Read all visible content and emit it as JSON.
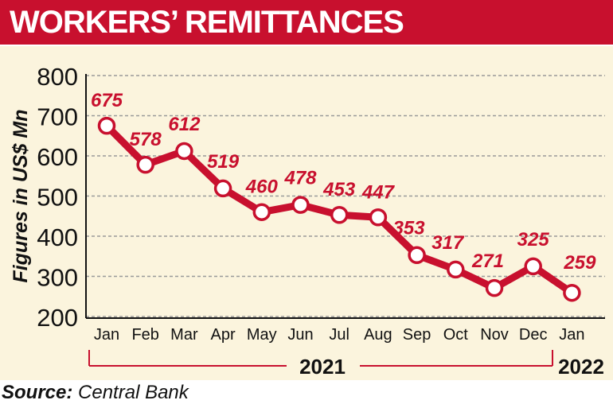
{
  "header": {
    "title": "WORKERS’ REMITTANCES"
  },
  "source": {
    "label": "Source:",
    "text": "Central Bank"
  },
  "colors": {
    "accent": "#c8102e",
    "panel": "#fbf4dd",
    "grid": "#9a9a9a",
    "text": "#111111"
  },
  "chart_data": {
    "type": "line",
    "title": "",
    "xlabel": "",
    "ylabel": "Figures in US$ Mn",
    "categories": [
      "Jan",
      "Feb",
      "Mar",
      "Apr",
      "May",
      "Jun",
      "Jul",
      "Aug",
      "Sep",
      "Oct",
      "Nov",
      "Dec",
      "Jan"
    ],
    "series": [
      {
        "values": [
          675,
          578,
          612,
          519,
          460,
          478,
          453,
          447,
          353,
          317,
          271,
          325,
          259
        ]
      }
    ],
    "data_labels": [
      "675",
      "578",
      "612",
      "519",
      "460",
      "478",
      "453",
      "447",
      "353",
      "317",
      "271",
      "325",
      "259"
    ],
    "yticks": [
      "200",
      "300",
      "400",
      "500",
      "600",
      "700",
      "800"
    ],
    "ylim": [
      200,
      800
    ],
    "grid": true,
    "year_labels": [
      "2021",
      "2022"
    ]
  }
}
